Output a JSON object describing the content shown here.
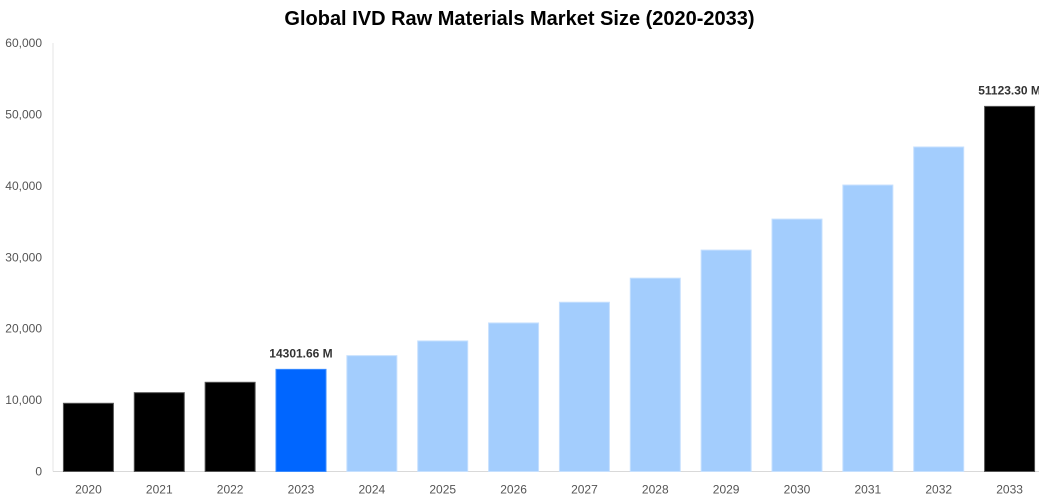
{
  "chart_data": {
    "type": "bar",
    "title": "Global IVD Raw Materials Market Size (2020-2033)",
    "xlabel": "",
    "ylabel": "",
    "categories": [
      "2020",
      "2021",
      "2022",
      "2023",
      "2024",
      "2025",
      "2026",
      "2027",
      "2028",
      "2029",
      "2030",
      "2031",
      "2032",
      "2033"
    ],
    "values": [
      9550,
      11040,
      12490,
      14301.66,
      16220,
      18280,
      20800,
      23700,
      27070,
      31000,
      35340,
      40110,
      45440,
      51123.3
    ],
    "bar_colors": [
      "#000000",
      "#000000",
      "#000000",
      "#0066ff",
      "#a3cdfd",
      "#a3cdfd",
      "#a3cdfd",
      "#a3cdfd",
      "#a3cdfd",
      "#a3cdfd",
      "#a3cdfd",
      "#a3cdfd",
      "#a3cdfd",
      "#000000"
    ],
    "data_labels": {
      "3": "14301.66 M",
      "13": "51123.30 M"
    },
    "ylim": [
      0,
      60000
    ],
    "yticks": [
      0,
      10000,
      20000,
      30000,
      40000,
      50000,
      60000
    ],
    "ytick_labels": [
      "0",
      "10,000",
      "20,000",
      "30,000",
      "40,000",
      "50,000",
      "60,000"
    ],
    "grid": false,
    "legend": "none"
  }
}
